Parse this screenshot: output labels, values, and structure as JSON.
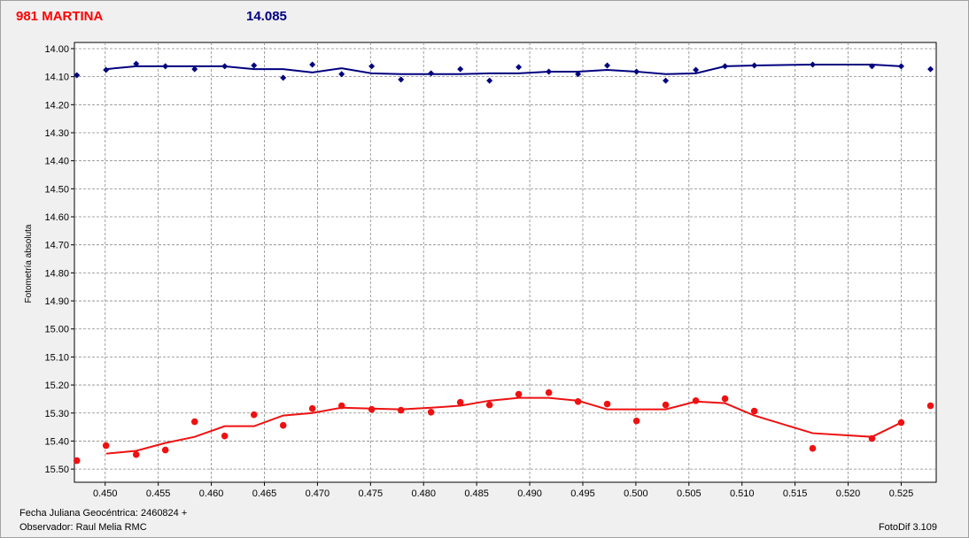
{
  "chart_data": {
    "type": "scatter",
    "title": "981 MARTINA",
    "title_color": "#ff0000",
    "subtitle": "14.085",
    "subtitle_color": "#000080",
    "ylabel": "Fotometría absoluta",
    "xlabel": "Fecha Juliana Geocéntrica: 2460824 +",
    "footer_left": "Observador: Raul Melia RMC",
    "footer_right": "FotoDif 3.109",
    "grid": true,
    "y_inverted": true,
    "xlim": [
      0.4471,
      0.5283
    ],
    "ylim": [
      13.978,
      15.547
    ],
    "xticks": [
      {
        "value": 0.45,
        "label": "0.450"
      },
      {
        "value": 0.455,
        "label": "0.455"
      },
      {
        "value": 0.46,
        "label": "0.460"
      },
      {
        "value": 0.465,
        "label": "0.465"
      },
      {
        "value": 0.47,
        "label": "0.470"
      },
      {
        "value": 0.475,
        "label": "0.475"
      },
      {
        "value": 0.48,
        "label": "0.480"
      },
      {
        "value": 0.485,
        "label": "0.485"
      },
      {
        "value": 0.49,
        "label": "0.490"
      },
      {
        "value": 0.495,
        "label": "0.495"
      },
      {
        "value": 0.5,
        "label": "0.500"
      },
      {
        "value": 0.505,
        "label": "0.505"
      },
      {
        "value": 0.51,
        "label": "0.510"
      },
      {
        "value": 0.515,
        "label": "0.515"
      },
      {
        "value": 0.52,
        "label": "0.520"
      },
      {
        "value": 0.525,
        "label": "0.525"
      }
    ],
    "yticks": [
      {
        "value": 14,
        "label": "14.00"
      },
      {
        "value": 14.1,
        "label": "14.10"
      },
      {
        "value": 14.2,
        "label": "14.20"
      },
      {
        "value": 14.3,
        "label": "14.30"
      },
      {
        "value": 14.4,
        "label": "14.40"
      },
      {
        "value": 14.5,
        "label": "14.50"
      },
      {
        "value": 14.6,
        "label": "14.60"
      },
      {
        "value": 14.7,
        "label": "14.70"
      },
      {
        "value": 14.8,
        "label": "14.80"
      },
      {
        "value": 14.9,
        "label": "14.90"
      },
      {
        "value": 15,
        "label": "15.00"
      },
      {
        "value": 15.1,
        "label": "15.10"
      },
      {
        "value": 15.2,
        "label": "15.20"
      },
      {
        "value": 15.3,
        "label": "15.30"
      },
      {
        "value": 15.4,
        "label": "15.40"
      },
      {
        "value": 15.5,
        "label": "15.50"
      }
    ],
    "x": [
      0.44733,
      0.45008,
      0.45292,
      0.45567,
      0.45843,
      0.46126,
      0.46402,
      0.46677,
      0.46952,
      0.47228,
      0.47511,
      0.47787,
      0.4807,
      0.48346,
      0.48621,
      0.48896,
      0.4918,
      0.49455,
      0.4973,
      0.50006,
      0.50281,
      0.50565,
      0.5084,
      0.51116,
      0.51666,
      0.52225,
      0.525,
      0.52776
    ],
    "series": [
      {
        "color": "#00007f",
        "marker": "diamond",
        "values": [
          14.095,
          14.076,
          14.054,
          14.063,
          14.073,
          14.063,
          14.06,
          14.104,
          14.057,
          14.091,
          14.063,
          14.11,
          14.088,
          14.073,
          14.114,
          14.066,
          14.082,
          14.091,
          14.06,
          14.082,
          14.114,
          14.076,
          14.063,
          14.06,
          14.057,
          14.063,
          14.063,
          14.073
        ],
        "fit": [
          null,
          14.073,
          14.063,
          14.063,
          14.063,
          14.063,
          14.073,
          14.073,
          14.085,
          14.07,
          14.088,
          14.091,
          14.091,
          14.091,
          14.088,
          14.088,
          14.082,
          14.082,
          14.076,
          14.082,
          14.091,
          14.088,
          14.063,
          14.06,
          14.057,
          14.057,
          14.063,
          null
        ]
      },
      {
        "color": "#ee1111",
        "marker": "circle",
        "values": [
          15.47,
          15.416,
          15.448,
          15.432,
          15.331,
          15.382,
          15.306,
          15.344,
          15.284,
          15.274,
          15.287,
          15.29,
          15.297,
          15.262,
          15.271,
          15.233,
          15.227,
          15.259,
          15.268,
          15.328,
          15.271,
          15.256,
          15.249,
          15.293,
          15.426,
          15.391,
          15.334,
          15.274
        ],
        "fit": [
          null,
          15.445,
          15.435,
          15.407,
          15.385,
          15.347,
          15.347,
          15.309,
          15.3,
          15.281,
          15.284,
          15.287,
          15.281,
          15.274,
          15.256,
          15.246,
          15.246,
          15.256,
          15.287,
          15.287,
          15.287,
          15.259,
          15.265,
          15.309,
          15.372,
          15.385,
          15.334,
          null
        ]
      }
    ]
  }
}
